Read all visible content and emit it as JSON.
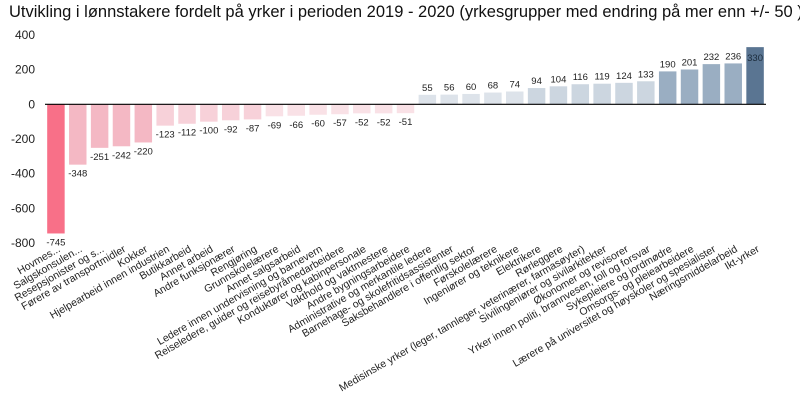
{
  "chart_data": {
    "type": "bar",
    "title": "Utvikling i lønnstakere fordelt på yrker i perioden 2019 - 2020 (yrkesgrupper med endring på mer enn +/- 50 )",
    "xlabel": "",
    "ylabel": "",
    "ylim": [
      -800,
      400
    ],
    "yticks": [
      -800,
      -600,
      -400,
      -200,
      0,
      200,
      400
    ],
    "ytick_labels": [
      "-800",
      "-600",
      "-400",
      "-200",
      "0",
      "200",
      "400"
    ],
    "grid": false,
    "legend": "none",
    "categories": [
      "Hovmes...",
      "Salgskonsulen...",
      "Resepsjonister og s...",
      "Førere av transportmidler",
      "Kokker",
      "Hjelpearbeid innen industrien",
      "Butikkarbeid",
      "Annet arbeid",
      "Andre funksjonærer",
      "Rengjøring",
      "Grunnskolelærere",
      "Annet salgsarbeid",
      "Ledere innen undervisning og barnevern",
      "Reiseledere, guider og reisebyråmedarbeidere",
      "Konduktører og kabinpersonale",
      "Vakthold og vaktmestere",
      "Andre bygningsarbeidere",
      "Administrative og merkantile ledere",
      "Barnehage- og skolefritidsassistenter",
      "Saksbehandlere i offentlig sektor",
      "Førskolelærere",
      "Ingeniører og teknikere",
      "Elektrikere",
      "Rørleggere",
      "Medisinske yrker (leger, tannleger, veterinærer, farmasøyter)",
      "Sivilingeniører og sivilarkitekter",
      "Økonomer og revisorer",
      "Yrker innen politi, brannvesen, toll og forsvar",
      "Sykepleiere og jordmødre",
      "Omsorgs- og pleiearbeidere",
      "Lærere på universitet og høyskoler og spesialister",
      "Næringsmiddelarbeid",
      "Ikt-yrker"
    ],
    "values": [
      -745,
      -348,
      -251,
      -242,
      -220,
      -123,
      -112,
      -100,
      -92,
      -87,
      -69,
      -66,
      -60,
      -57,
      -52,
      -52,
      -51,
      55,
      56,
      60,
      68,
      74,
      94,
      104,
      116,
      119,
      124,
      133,
      190,
      201,
      232,
      236,
      330
    ],
    "value_labels": [
      "-745",
      "-348",
      "-251",
      "-242",
      "-220",
      "-123",
      "-112",
      "-100",
      "-92",
      "-87",
      "-69",
      "-66",
      "-60",
      "-57",
      "-52",
      "-52",
      "-51",
      "55",
      "56",
      "60",
      "68",
      "74",
      "94",
      "104",
      "116",
      "119",
      "124",
      "133",
      "190",
      "201",
      "232",
      "236",
      "330"
    ],
    "colors": [
      "#f87088",
      "#f4b8c4",
      "#f4b8c4",
      "#f4b8c4",
      "#f4b8c4",
      "#f7d1d9",
      "#f7d1d9",
      "#f7d1d9",
      "#f7d1d9",
      "#f7d1d9",
      "#f9e1e6",
      "#f9e1e6",
      "#f9e1e6",
      "#f9e1e6",
      "#f9e1e6",
      "#f9e1e6",
      "#f9e1e6",
      "#dde3ea",
      "#dde3ea",
      "#dde3ea",
      "#dde3ea",
      "#dde3ea",
      "#ccd6e0",
      "#ccd6e0",
      "#ccd6e0",
      "#ccd6e0",
      "#ccd6e0",
      "#ccd6e0",
      "#9aaec2",
      "#9aaec2",
      "#9aaec2",
      "#9aaec2",
      "#5a7592"
    ]
  }
}
